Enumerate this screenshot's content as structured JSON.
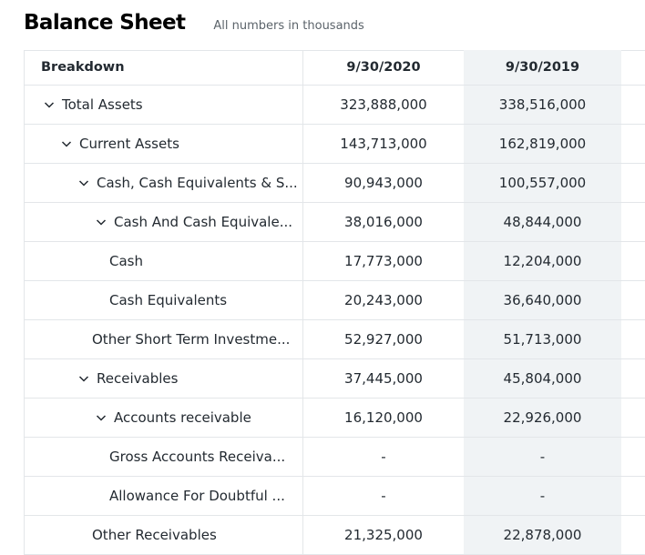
{
  "header": {
    "title": "Balance Sheet",
    "subtitle": "All numbers in thousands"
  },
  "table": {
    "columns": [
      "Breakdown",
      "9/30/2020",
      "9/30/2019"
    ],
    "rows": [
      {
        "label": "Total Assets",
        "v2020": "323,888,000",
        "v2019": "338,516,000",
        "expandable": true
      },
      {
        "label": "Current Assets",
        "v2020": "143,713,000",
        "v2019": "162,819,000",
        "expandable": true
      },
      {
        "label": "Cash, Cash Equivalents & S...",
        "v2020": "90,943,000",
        "v2019": "100,557,000",
        "expandable": true
      },
      {
        "label": "Cash And Cash Equivale...",
        "v2020": "38,016,000",
        "v2019": "48,844,000",
        "expandable": true
      },
      {
        "label": "Cash",
        "v2020": "17,773,000",
        "v2019": "12,204,000",
        "expandable": false
      },
      {
        "label": "Cash Equivalents",
        "v2020": "20,243,000",
        "v2019": "36,640,000",
        "expandable": false
      },
      {
        "label": "Other Short Term Investme...",
        "v2020": "52,927,000",
        "v2019": "51,713,000",
        "expandable": false
      },
      {
        "label": "Receivables",
        "v2020": "37,445,000",
        "v2019": "45,804,000",
        "expandable": true
      },
      {
        "label": "Accounts receivable",
        "v2020": "16,120,000",
        "v2019": "22,926,000",
        "expandable": true
      },
      {
        "label": "Gross Accounts Receiva...",
        "v2020": "-",
        "v2019": "-",
        "expandable": false
      },
      {
        "label": "Allowance For Doubtful ...",
        "v2020": "-",
        "v2019": "-",
        "expandable": false
      },
      {
        "label": "Other Receivables",
        "v2020": "21,325,000",
        "v2019": "22,878,000",
        "expandable": false
      }
    ]
  },
  "icons": {
    "expander": "chevron-down-icon"
  },
  "colors": {
    "highlight_column": "#f0f3f5",
    "border": "#e3e6e9",
    "text": "#232a31"
  }
}
